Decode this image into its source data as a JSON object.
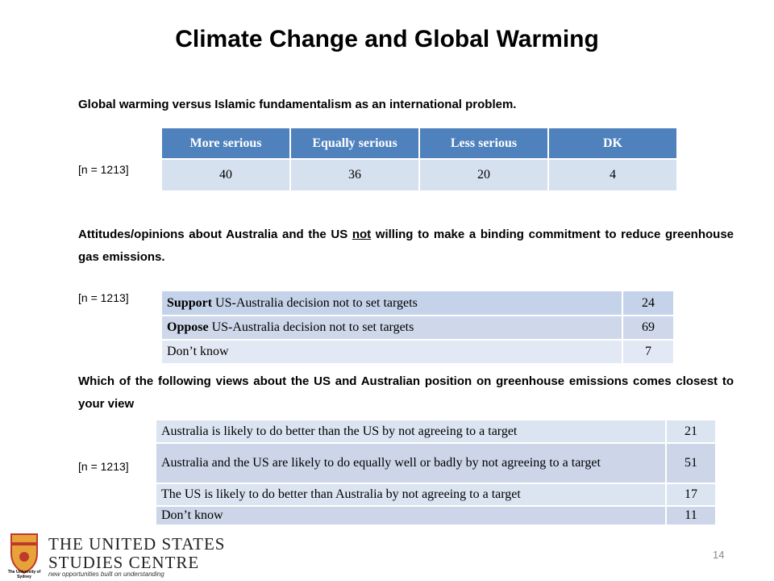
{
  "title": "Climate Change and Global Warming",
  "sections": [
    {
      "question": [
        "Global warming versus Islamic fundamentalism as an international problem."
      ],
      "n": "[n = 1213]",
      "table": {
        "header": [
          "More serious",
          "Equally serious",
          "Less serious",
          "DK"
        ],
        "rows": [
          [
            "40",
            "36",
            "20",
            "4"
          ]
        ]
      }
    },
    {
      "question": [
        "Attitudes/opinions about Australia and the US ",
        "not",
        " willing to make a binding commitment to reduce greenhouse gas emissions."
      ],
      "n": "[n = 1213]",
      "table": {
        "rows": [
          {
            "label": [
              "Support",
              " US-Australia decision not to set targets"
            ],
            "value": "24"
          },
          {
            "label": [
              "Oppose",
              " US-Australia decision not to set targets"
            ],
            "value": "69"
          },
          {
            "label": [
              "Don’t know"
            ],
            "value": "7"
          }
        ]
      }
    },
    {
      "question": [
        "Which of the following views about the US and Australian position on greenhouse emissions comes closest to your view"
      ],
      "n": "[n = 1213]",
      "table": {
        "rows": [
          {
            "label": [
              "Australia is likely to do better than the US by not agreeing to a target"
            ],
            "value": "21"
          },
          {
            "label": [
              "Australia and the US are likely to do equally well or badly by not agreeing to a target"
            ],
            "value": "51"
          },
          {
            "label": [
              "The US is likely to do better than Australia by not agreeing to a target"
            ],
            "value": "17"
          },
          {
            "label": [
              "Don’t know"
            ],
            "value": "11"
          }
        ]
      }
    }
  ],
  "footer": {
    "logo_small": "The University of Sydney",
    "org_line1": "The United States",
    "org_line2": "Studies Centre",
    "tagline": "new opportunities built on understanding",
    "page": "14"
  }
}
